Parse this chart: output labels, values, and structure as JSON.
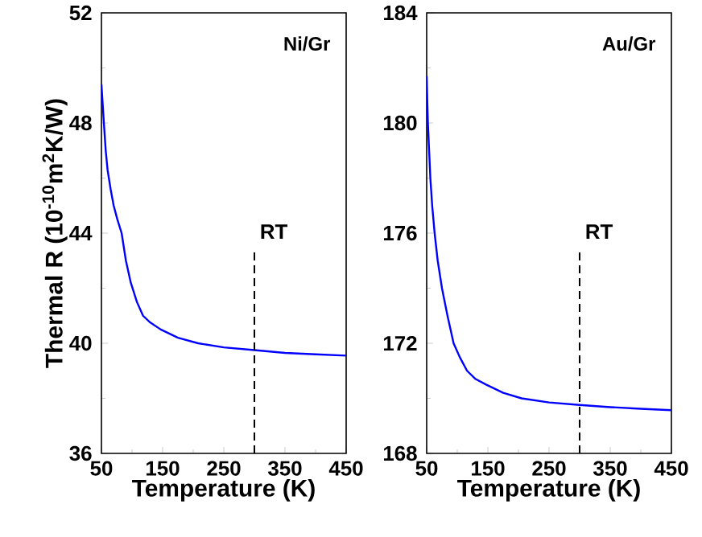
{
  "chart_data": [
    {
      "type": "line",
      "xlabel": "Temperature (K)",
      "ylabel": "Thermal R (10$^{-10}$m$^{2}$K/W)",
      "annotations": [
        "Ni/Gr"
      ],
      "x": [
        50,
        52,
        54,
        57,
        60,
        65,
        70,
        76,
        83,
        90,
        98,
        108,
        118,
        130,
        147,
        175,
        208,
        250,
        300,
        350,
        400,
        450
      ],
      "series": [
        {
          "color": "#0000ff",
          "values": [
            49.4,
            48.7,
            48,
            47,
            46.3,
            45.6,
            45,
            44.5,
            44,
            43,
            42.2,
            41.5,
            41,
            40.75,
            40.5,
            40.2,
            40,
            39.85,
            39.75,
            39.65,
            39.6,
            39.55
          ]
        }
      ],
      "xlim": [
        50,
        450
      ],
      "xticks": [
        50,
        150,
        250,
        350,
        450
      ],
      "ylim": [
        36,
        52
      ],
      "yticks": [
        36,
        40,
        44,
        48,
        52
      ],
      "ref_lines": [
        {
          "axis": "x",
          "value": 300,
          "label": "RT",
          "color": "#000000",
          "line_style": "dashed"
        }
      ],
      "grid": false,
      "marker": "none",
      "line_style": "solid"
    },
    {
      "type": "line",
      "xlabel": "Temperature (K)",
      "annotations": [
        "Au/Gr"
      ],
      "x": [
        50,
        51,
        52,
        54,
        56,
        59,
        63,
        68,
        75,
        84,
        94,
        104,
        116,
        130,
        147,
        175,
        205,
        250,
        300,
        350,
        400,
        450
      ],
      "series": [
        {
          "color": "#0000ff",
          "values": [
            181.7,
            180.8,
            180,
            179,
            178,
            177,
            176,
            175,
            174,
            173,
            172,
            171.5,
            171,
            170.7,
            170.5,
            170.2,
            170,
            169.85,
            169.76,
            169.68,
            169.62,
            169.57
          ]
        }
      ],
      "xlim": [
        50,
        450
      ],
      "xticks": [
        50,
        150,
        250,
        350,
        450
      ],
      "ylim": [
        168,
        184
      ],
      "yticks": [
        168,
        172,
        176,
        180,
        184
      ],
      "ref_lines": [
        {
          "axis": "x",
          "value": 300,
          "label": "RT",
          "color": "#000000",
          "line_style": "dashed"
        }
      ],
      "grid": false,
      "marker": "none",
      "line_style": "solid"
    }
  ]
}
